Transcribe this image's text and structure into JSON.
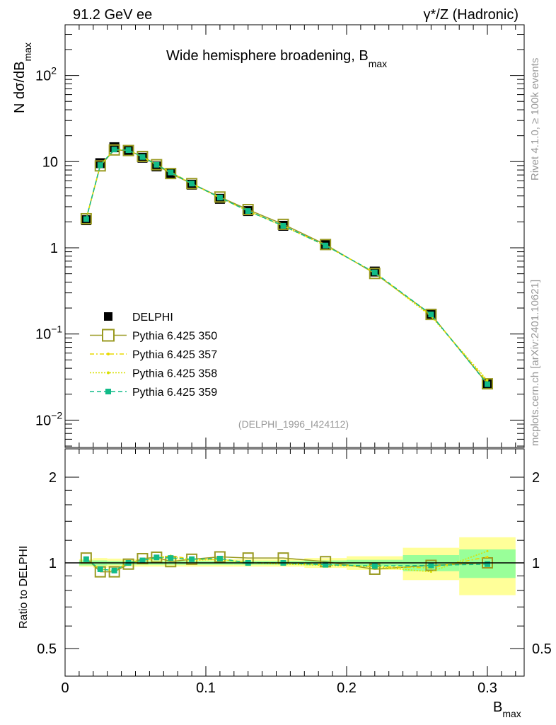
{
  "header": {
    "left": "91.2 GeV ee",
    "right": "γ*/Z (Hadronic)"
  },
  "side": {
    "rivet": "Rivet 4.1.0, ≥ 100k events",
    "mcplots": "mcplots.cern.ch [arXiv:2401.10621]"
  },
  "chart_data": [
    {
      "type": "line",
      "title": "Wide hemisphere broadening, B",
      "title_sub": "max",
      "ylabel": "N  dσ/dB",
      "ylabel_sub": "max",
      "xlabel": "B",
      "xlabel_sub": "max",
      "annotation": "(DELPHI_1996_I424112)",
      "yscale": "log",
      "ylim": [
        0.005,
        390
      ],
      "xlim": [
        0,
        0.326
      ],
      "ytick_labels": [
        {
          "v": 100,
          "base": "10",
          "exp": "2"
        },
        {
          "v": 10,
          "base": "10",
          "exp": ""
        },
        {
          "v": 1,
          "base": "1",
          "exp": ""
        },
        {
          "v": 0.1,
          "base": "10",
          "exp": "−1"
        },
        {
          "v": 0.01,
          "base": "10",
          "exp": "−2"
        }
      ],
      "xtick_labels": [
        "0",
        "0.1",
        "0.2",
        "0.3"
      ],
      "legend_position": "center-left",
      "bin_edges": [
        0.01,
        0.02,
        0.03,
        0.04,
        0.05,
        0.06,
        0.07,
        0.08,
        0.1,
        0.12,
        0.14,
        0.17,
        0.2,
        0.24,
        0.28,
        0.32
      ],
      "x": [
        0.015,
        0.025,
        0.035,
        0.045,
        0.055,
        0.065,
        0.075,
        0.09,
        0.11,
        0.13,
        0.155,
        0.185,
        0.22,
        0.26,
        0.3
      ],
      "series": [
        {
          "name": "DELPHI",
          "color": "#000000",
          "style": "data",
          "values": [
            2.09,
            9.6,
            14.7,
            13.6,
            11.1,
            8.8,
            7.2,
            5.4,
            3.7,
            2.67,
            1.8,
            1.08,
            0.53,
            0.172,
            0.0264
          ]
        },
        {
          "name": "Pythia 6.425 350",
          "color": "#9a9a22",
          "style": "solid-open-square",
          "ratio": [
            1.04,
            0.93,
            0.93,
            0.99,
            1.035,
            1.047,
            1.01,
            1.03,
            1.05,
            1.04,
            1.04,
            1.01,
            0.95,
            0.98,
            1.0
          ]
        },
        {
          "name": "Pythia 6.425 357",
          "color": "#e8d800",
          "style": "dashdot",
          "ratio": [
            1.03,
            0.95,
            0.94,
            1.0,
            1.02,
            1.04,
            1.06,
            1.03,
            1.03,
            1.0,
            1.0,
            0.985,
            0.97,
            0.96,
            1.05
          ]
        },
        {
          "name": "Pythia 6.425 358",
          "color": "#d8e000",
          "style": "dotted",
          "ratio": [
            1.03,
            0.95,
            0.94,
            1.0,
            1.02,
            1.04,
            1.05,
            1.02,
            1.03,
            1.0,
            0.99,
            0.98,
            0.97,
            0.93,
            1.1
          ]
        },
        {
          "name": "Pythia 6.425 359",
          "color": "#11bb88",
          "style": "dashed-square",
          "ratio": [
            1.03,
            0.95,
            0.94,
            1.0,
            1.02,
            1.045,
            1.04,
            1.03,
            1.035,
            1.0,
            1.0,
            0.985,
            0.975,
            0.98,
            0.99
          ]
        }
      ]
    },
    {
      "type": "line",
      "ylabel": "Ratio to DELPHI",
      "yscale": "log",
      "ylim": [
        0.4,
        2.5
      ],
      "ytick_labels": [
        {
          "v": 2,
          "label": "2"
        },
        {
          "v": 1,
          "label": "1"
        },
        {
          "v": 0.5,
          "label": "0.5"
        }
      ],
      "band_stat": [
        0.02,
        0.02,
        0.015,
        0.015,
        0.015,
        0.015,
        0.015,
        0.015,
        0.015,
        0.015,
        0.015,
        0.02,
        0.025,
        0.065,
        0.115
      ],
      "band_total": [
        0.03,
        0.04,
        0.035,
        0.03,
        0.03,
        0.03,
        0.03,
        0.03,
        0.03,
        0.03,
        0.03,
        0.04,
        0.055,
        0.13,
        0.23
      ],
      "band_colors": {
        "stat": "#99ff99",
        "total": "#ffff99"
      }
    }
  ]
}
